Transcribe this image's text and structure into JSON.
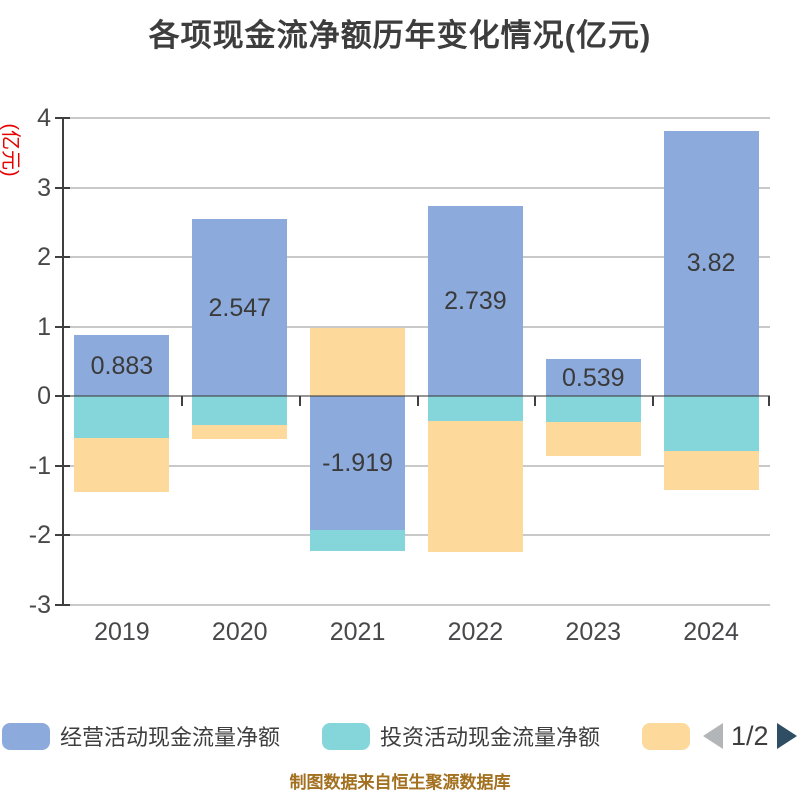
{
  "page": {
    "background": "#ffffff",
    "footer": "制图数据来自恒生聚源数据库"
  },
  "chart_data": {
    "type": "bar",
    "stacked": true,
    "title": "各项现金流净额历年变化情况(亿元)",
    "ylabel": "(亿元)",
    "ylabel_color": "#e60000",
    "xlabel": "",
    "categories": [
      "2019",
      "2020",
      "2021",
      "2022",
      "2023",
      "2024"
    ],
    "yticks": [
      4,
      3,
      2,
      1,
      0,
      -1,
      -2,
      -3
    ],
    "ylim": [
      -3,
      4
    ],
    "grid": true,
    "legend_position": "bottom",
    "series": [
      {
        "name": "经营活动现金流量净额",
        "color": "#8cabdc",
        "values": [
          0.883,
          2.547,
          -1.919,
          2.739,
          0.539,
          3.82
        ],
        "labels": [
          "0.883",
          "2.547",
          "-1.919",
          "2.739",
          "0.539",
          "3.82"
        ],
        "labeled": true
      },
      {
        "name": "投资活动现金流量净额",
        "color": "#85d6db",
        "values": [
          -0.6,
          -0.41,
          -0.3,
          -0.36,
          -0.37,
          -0.78
        ],
        "labeled": false,
        "estimated": true
      },
      {
        "name": "",
        "color": "#fdd99b",
        "values": [
          -0.77,
          -0.2,
          0.98,
          -1.88,
          -0.49,
          -0.57
        ],
        "labeled": false,
        "estimated": true
      }
    ]
  },
  "legend": {
    "items": [
      {
        "label": "经营活动现金流量净额",
        "color": "#8cabdc"
      },
      {
        "label": "投资活动现金流量净额",
        "color": "#85d6db"
      },
      {
        "label": "",
        "color": "#fdd99b"
      }
    ],
    "pagination": {
      "current_page": "1/2",
      "prev_icon": "left-triangle",
      "prev_icon_color": "#b3b6b9",
      "next_icon": "right-triangle",
      "next_icon_color": "#2f4d63"
    }
  },
  "colors": {
    "title_text": "#3d3d3d",
    "tick_text": "#48484a",
    "gridline": "#c9c9c9",
    "axis_line": "#3f3f3f",
    "value_label_text": "#3a3a3a",
    "footer_text": "#a2701f"
  }
}
